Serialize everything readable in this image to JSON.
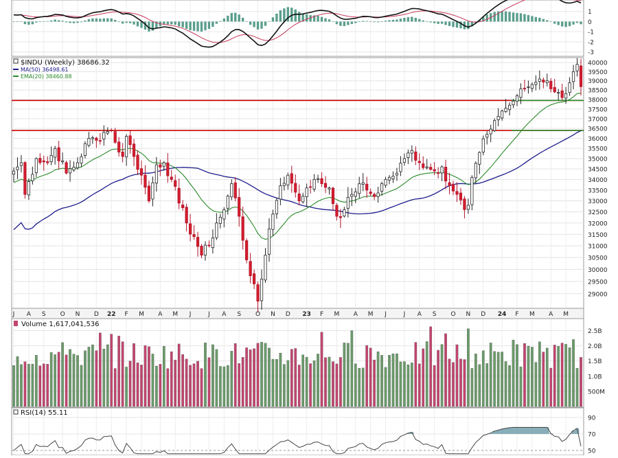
{
  "chart_data": {
    "type": "candlestick",
    "price_panel": {
      "label_symbol": "$INDU (Weekly)",
      "label_value": "38686.32",
      "indicators": [
        {
          "name": "MA(50)",
          "value": "36498.61",
          "color": "#1c1c8c"
        },
        {
          "name": "EMA(20)",
          "value": "38460.88",
          "color": "#2a8a2a"
        }
      ],
      "yticks": [
        29000,
        29500,
        30000,
        30500,
        31000,
        31500,
        32000,
        32500,
        33000,
        33500,
        34000,
        34500,
        35000,
        35500,
        36000,
        36500,
        37000,
        37500,
        38000,
        38500,
        39000,
        39500,
        40000
      ],
      "ylim": [
        28500,
        40200
      ],
      "scale": "log",
      "support_lines": [
        {
          "value": 37950,
          "color": "#cc0000"
        },
        {
          "value": 36400,
          "color": "#cc0000"
        }
      ],
      "green_support_lines": [
        {
          "value": 37950,
          "from_index": 155,
          "color": "#2e8b2e"
        },
        {
          "value": 36400,
          "from_index": 145,
          "color": "#2e8b2e"
        }
      ],
      "bull_color": "#ffffff",
      "bear_color": "#d61e2e"
    },
    "x_axis": {
      "labels": [
        {
          "text": "J",
          "index": 0
        },
        {
          "text": "A",
          "index": 4
        },
        {
          "text": "S",
          "index": 8
        },
        {
          "text": "O",
          "index": 13
        },
        {
          "text": "N",
          "index": 17
        },
        {
          "text": "D",
          "index": 22
        },
        {
          "text": "22",
          "index": 26,
          "bold": true
        },
        {
          "text": "F",
          "index": 30
        },
        {
          "text": "M",
          "index": 34
        },
        {
          "text": "A",
          "index": 39
        },
        {
          "text": "M",
          "index": 43
        },
        {
          "text": "J",
          "index": 47
        },
        {
          "text": "J",
          "index": 52
        },
        {
          "text": "A",
          "index": 56
        },
        {
          "text": "S",
          "index": 60
        },
        {
          "text": "O",
          "index": 65
        },
        {
          "text": "N",
          "index": 69
        },
        {
          "text": "D",
          "index": 73
        },
        {
          "text": "23",
          "index": 78,
          "bold": true
        },
        {
          "text": "F",
          "index": 82
        },
        {
          "text": "M",
          "index": 86
        },
        {
          "text": "A",
          "index": 91
        },
        {
          "text": "M",
          "index": 95
        },
        {
          "text": "J",
          "index": 99
        },
        {
          "text": "J",
          "index": 104
        },
        {
          "text": "A",
          "index": 108
        },
        {
          "text": "S",
          "index": 112
        },
        {
          "text": "O",
          "index": 117
        },
        {
          "text": "N",
          "index": 121
        },
        {
          "text": "D",
          "index": 125
        },
        {
          "text": "24",
          "index": 130,
          "bold": true
        },
        {
          "text": "F",
          "index": 134
        },
        {
          "text": "M",
          "index": 138
        },
        {
          "text": "A",
          "index": 143
        },
        {
          "text": "M",
          "index": 147
        }
      ],
      "count": 152
    },
    "close_anchors": [
      [
        0,
        34400
      ],
      [
        2,
        34800
      ],
      [
        3,
        33300
      ],
      [
        6,
        35000
      ],
      [
        9,
        34800
      ],
      [
        11,
        35500
      ],
      [
        14,
        34300
      ],
      [
        17,
        34800
      ],
      [
        20,
        36000
      ],
      [
        22,
        35900
      ],
      [
        24,
        36300
      ],
      [
        26,
        36400
      ],
      [
        27,
        35800
      ],
      [
        29,
        35100
      ],
      [
        30,
        36100
      ],
      [
        32,
        35100
      ],
      [
        34,
        34200
      ],
      [
        36,
        33000
      ],
      [
        38,
        34700
      ],
      [
        40,
        34800
      ],
      [
        42,
        34000
      ],
      [
        44,
        32900
      ],
      [
        46,
        32000
      ],
      [
        48,
        31400
      ],
      [
        50,
        30600
      ],
      [
        52,
        31000
      ],
      [
        54,
        32000
      ],
      [
        56,
        32600
      ],
      [
        58,
        33800
      ],
      [
        60,
        32300
      ],
      [
        62,
        30400
      ],
      [
        64,
        29400
      ],
      [
        65,
        28700
      ],
      [
        66,
        29600
      ],
      [
        67,
        30600
      ],
      [
        69,
        32400
      ],
      [
        71,
        33700
      ],
      [
        73,
        34200
      ],
      [
        75,
        33400
      ],
      [
        76,
        33000
      ],
      [
        78,
        33600
      ],
      [
        80,
        34000
      ],
      [
        82,
        33800
      ],
      [
        84,
        33600
      ],
      [
        86,
        32300
      ],
      [
        88,
        32600
      ],
      [
        90,
        33300
      ],
      [
        92,
        33800
      ],
      [
        94,
        33500
      ],
      [
        96,
        33200
      ],
      [
        98,
        33800
      ],
      [
        100,
        34100
      ],
      [
        102,
        34300
      ],
      [
        104,
        35000
      ],
      [
        106,
        35400
      ],
      [
        108,
        34800
      ],
      [
        110,
        34600
      ],
      [
        112,
        34400
      ],
      [
        114,
        34600
      ],
      [
        116,
        33700
      ],
      [
        118,
        33300
      ],
      [
        120,
        32600
      ],
      [
        121,
        32800
      ],
      [
        122,
        34100
      ],
      [
        124,
        35300
      ],
      [
        126,
        36200
      ],
      [
        128,
        36900
      ],
      [
        130,
        37400
      ],
      [
        132,
        37700
      ],
      [
        134,
        38200
      ],
      [
        136,
        38600
      ],
      [
        138,
        38800
      ],
      [
        140,
        39100
      ],
      [
        142,
        39000
      ],
      [
        144,
        38400
      ],
      [
        146,
        38100
      ],
      [
        148,
        38900
      ],
      [
        149,
        39500
      ],
      [
        150,
        39900
      ],
      [
        151,
        38686
      ]
    ],
    "macd_panel": {
      "yticks": [
        "1",
        "0",
        "-1",
        "-2",
        "-3"
      ],
      "tick_values": [
        1,
        0,
        -1,
        -2,
        -3
      ],
      "ylim": [
        -3.3,
        2.0
      ],
      "line_color": "#111111",
      "signal_color": "#c8385a",
      "hist_color": "#5a9e8c"
    },
    "volume_panel": {
      "label": "Volume 1,617,041,536",
      "yticks": [
        "2.5B",
        "2.0B",
        "1.5B",
        "1.0B",
        "500M"
      ],
      "tick_values": [
        2.5,
        2.0,
        1.5,
        1.0,
        0.5
      ],
      "ymax": 2.85,
      "up_color": "#6a9a6a",
      "down_color": "#c2456e"
    },
    "rsi_panel": {
      "label": "RSI(14) 55.11",
      "yticks": [
        "90",
        "70",
        "50"
      ],
      "tick_values": [
        90,
        70,
        50
      ],
      "ylim": [
        45,
        100
      ],
      "line_color": "#444444",
      "fill_color": "#6a9aa8"
    }
  }
}
